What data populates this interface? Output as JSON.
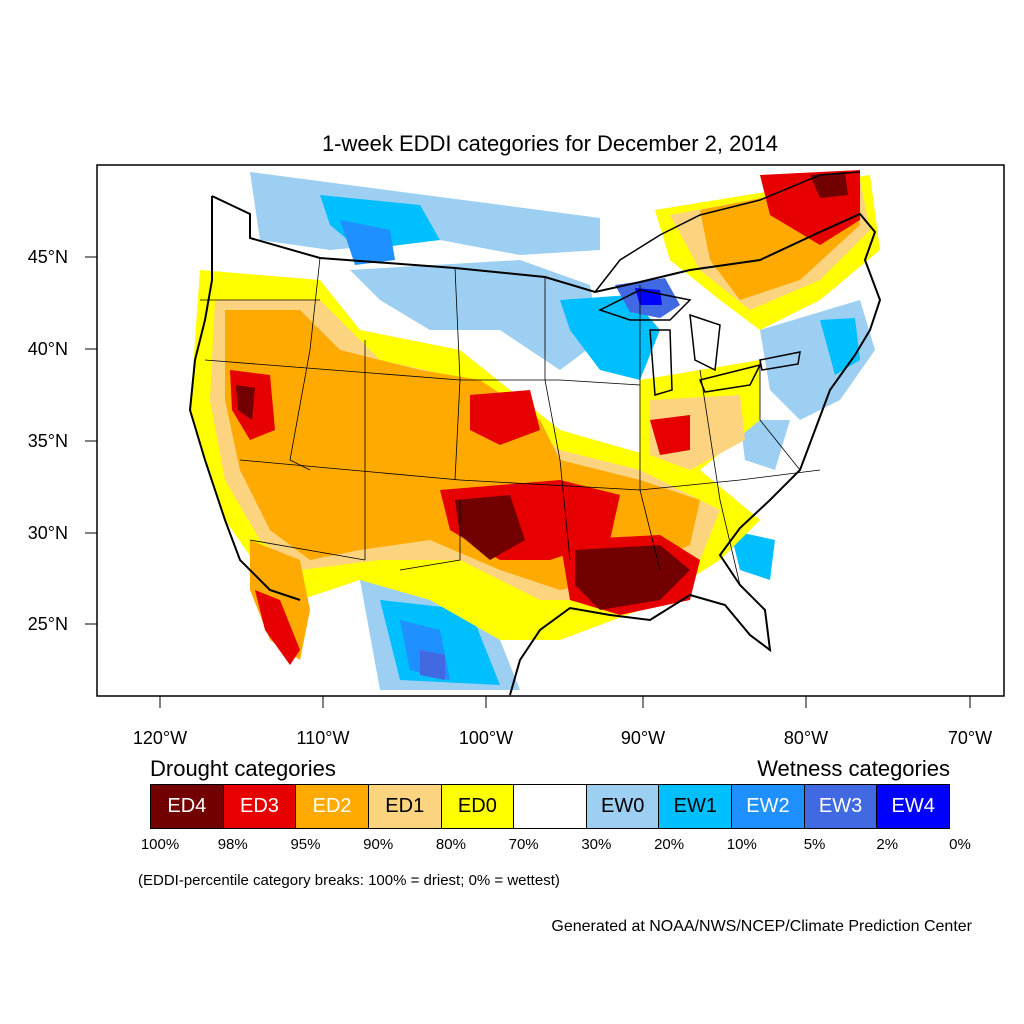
{
  "title": "1-week EDDI categories for December 2, 2014",
  "lat_ticks": [
    "45°N",
    "40°N",
    "35°N",
    "30°N",
    "25°N"
  ],
  "lon_ticks": [
    "120°W",
    "110°W",
    "100°W",
    "90°W",
    "80°W",
    "70°W"
  ],
  "legend": {
    "drought_heading": "Drought categories",
    "wetness_heading": "Wetness categories",
    "categories": [
      {
        "label": "ED4",
        "color": "#730000",
        "text_color": "#ffffff"
      },
      {
        "label": "ED3",
        "color": "#e60000",
        "text_color": "#ffffff"
      },
      {
        "label": "ED2",
        "color": "#ffaa00",
        "text_color": "#ffffff"
      },
      {
        "label": "ED1",
        "color": "#fcd37f",
        "text_color": "#000000"
      },
      {
        "label": "ED0",
        "color": "#ffff00",
        "text_color": "#000000"
      },
      {
        "label": "",
        "color": "#ffffff",
        "text_color": "#000000"
      },
      {
        "label": "EW0",
        "color": "#9ccff2",
        "text_color": "#000000"
      },
      {
        "label": "EW1",
        "color": "#00bfff",
        "text_color": "#000000"
      },
      {
        "label": "EW2",
        "color": "#1e90ff",
        "text_color": "#ffffff"
      },
      {
        "label": "EW3",
        "color": "#4169e1",
        "text_color": "#ffffff"
      },
      {
        "label": "EW4",
        "color": "#0000ff",
        "text_color": "#ffffff"
      }
    ],
    "percentiles": [
      "100%",
      "98%",
      "95%",
      "90%",
      "80%",
      "70%",
      "30%",
      "20%",
      "10%",
      "5%",
      "2%",
      "0%"
    ]
  },
  "note": "(EDDI-percentile category breaks: 100% = driest; 0% = wettest)",
  "credit": "Generated at NOAA/NWS/NCEP/Climate Prediction Center"
}
